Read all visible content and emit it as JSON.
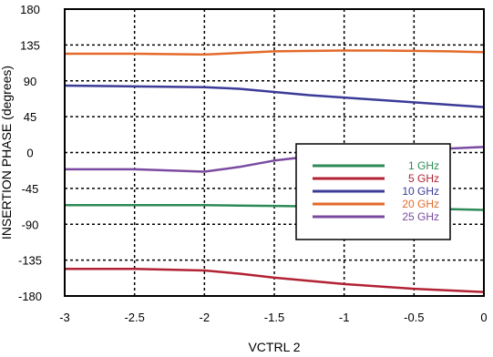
{
  "chart_data": {
    "type": "line",
    "title": "",
    "xlabel": "VCTRL 2",
    "ylabel": "INSERTION PHASE (degrees)",
    "xlim": [
      -3,
      0
    ],
    "ylim": [
      -180,
      180
    ],
    "x_ticks": [
      "-3",
      "-2.5",
      "-2",
      "-1.5",
      "-1",
      "-0.5",
      "0"
    ],
    "y_ticks": [
      "180",
      "135",
      "90",
      "45",
      "0",
      "-45",
      "-90",
      "-135",
      "-180"
    ],
    "grid": true,
    "legend_position": "center-right",
    "series": [
      {
        "name": "1 GHz",
        "color": "#2e8b57",
        "x": [
          -3,
          -2.5,
          -2,
          -1.75,
          -1.5,
          -1.25,
          -1,
          -0.75,
          -0.5,
          -0.25,
          0
        ],
        "values": [
          -66,
          -66,
          -66,
          -66.5,
          -67,
          -67.5,
          -68,
          -69,
          -70,
          -71,
          -72
        ]
      },
      {
        "name": "5 GHz",
        "color": "#b22234",
        "x": [
          -3,
          -2.5,
          -2,
          -1.75,
          -1.5,
          -1.25,
          -1,
          -0.75,
          -0.5,
          -0.25,
          0
        ],
        "values": [
          -146,
          -146,
          -148,
          -152,
          -157,
          -161,
          -165,
          -168,
          -171,
          -173,
          -175
        ]
      },
      {
        "name": "10 GHz",
        "color": "#3b3b98",
        "x": [
          -3,
          -2.5,
          -2,
          -1.75,
          -1.5,
          -1.25,
          -1,
          -0.75,
          -0.5,
          -0.25,
          0
        ],
        "values": [
          84,
          83,
          82,
          80,
          76,
          72,
          69,
          66,
          63,
          60,
          57
        ]
      },
      {
        "name": "20 GHz",
        "color": "#e36a2a",
        "x": [
          -3,
          -2.5,
          -2,
          -1.75,
          -1.5,
          -1.25,
          -1,
          -0.75,
          -0.5,
          -0.25,
          0
        ],
        "values": [
          124,
          124,
          123,
          125,
          127,
          127.5,
          128,
          128,
          127.5,
          127,
          126
        ]
      },
      {
        "name": "25 GHz",
        "color": "#7a4aa0",
        "x": [
          -3,
          -2.5,
          -2,
          -1.75,
          -1.5,
          -1.25,
          -1,
          -0.75,
          -0.5,
          -0.25,
          0
        ],
        "values": [
          -21,
          -21,
          -24,
          -18,
          -10,
          -5,
          -2,
          1,
          3,
          5,
          7
        ]
      }
    ]
  }
}
